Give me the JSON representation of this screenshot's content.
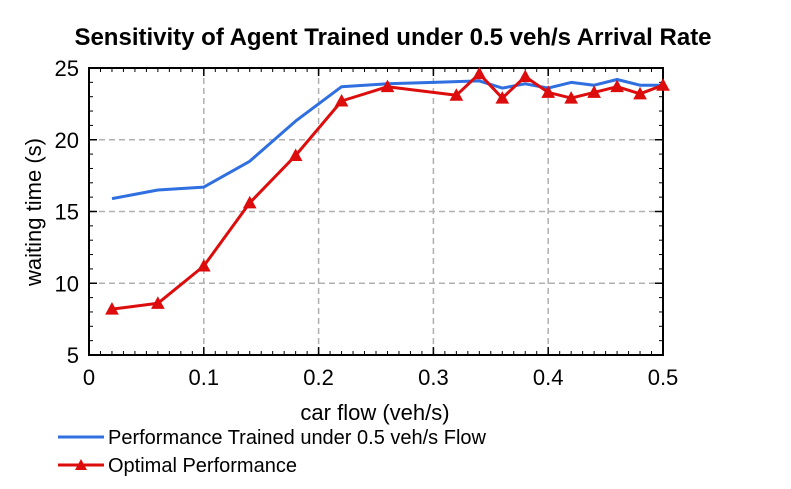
{
  "chart_data": {
    "type": "line",
    "title": "Sensitivity of Agent Trained under 0.5 veh/s Arrival Rate",
    "xlabel": "car flow (veh/s)",
    "ylabel": "waiting time (s)",
    "xlim": [
      0,
      0.5
    ],
    "ylim": [
      5,
      25
    ],
    "xticks": [
      0,
      0.1,
      0.2,
      0.3,
      0.4,
      0.5
    ],
    "xtick_labels": [
      "0",
      "0.1",
      "0.2",
      "0.3",
      "0.4",
      "0.5"
    ],
    "yticks": [
      5,
      10,
      15,
      20,
      25
    ],
    "ytick_labels": [
      "5",
      "10",
      "15",
      "20",
      "25"
    ],
    "grid": true,
    "legend_position": "below",
    "series": [
      {
        "name": "Performance Trained under 0.5 veh/s Flow",
        "color": "#2f6fe0",
        "marker": "none",
        "x": [
          0.02,
          0.06,
          0.1,
          0.14,
          0.18,
          0.22,
          0.26,
          0.3,
          0.34,
          0.36,
          0.38,
          0.4,
          0.42,
          0.44,
          0.46,
          0.48,
          0.5
        ],
        "y": [
          15.9,
          16.5,
          16.7,
          18.5,
          21.3,
          23.7,
          23.9,
          24.0,
          24.1,
          23.6,
          23.9,
          23.6,
          24.0,
          23.8,
          24.2,
          23.8,
          23.8
        ]
      },
      {
        "name": "Optimal Performance",
        "color": "#dd0d0d",
        "marker": "triangle",
        "x": [
          0.02,
          0.06,
          0.1,
          0.14,
          0.18,
          0.22,
          0.26,
          0.32,
          0.34,
          0.36,
          0.38,
          0.4,
          0.42,
          0.44,
          0.46,
          0.48,
          0.5
        ],
        "y": [
          8.2,
          8.6,
          11.2,
          15.6,
          18.9,
          22.7,
          23.7,
          23.1,
          24.6,
          22.9,
          24.4,
          23.3,
          22.9,
          23.3,
          23.7,
          23.2,
          23.8
        ]
      }
    ]
  }
}
